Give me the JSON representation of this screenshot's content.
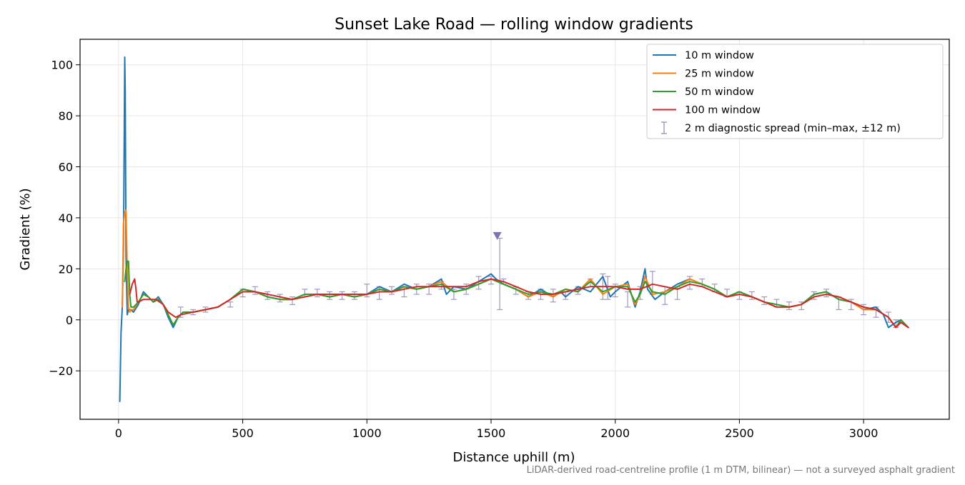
{
  "chart_data": {
    "type": "line",
    "title": "Sunset Lake Road — rolling window gradients",
    "xlabel": "Distance uphill (m)",
    "ylabel": "Gradient (%)",
    "xlim": [
      -155,
      3345
    ],
    "ylim": [
      -39,
      110
    ],
    "xticks": [
      0,
      500,
      1000,
      1500,
      2000,
      2500,
      3000
    ],
    "yticks": [
      -20,
      0,
      20,
      40,
      60,
      80,
      100
    ],
    "ytick_labels": [
      "−20",
      "0",
      "20",
      "40",
      "60",
      "80",
      "100"
    ],
    "grid": true,
    "legend_position": "top-right",
    "footnote": "LiDAR-derived road-centreline profile (1 m DTM, bilinear) — not a surveyed asphalt gradient",
    "series": [
      {
        "name": "10 m window",
        "color": "#1f77b4",
        "x": [
          5,
          10,
          15,
          20,
          25,
          27,
          30,
          35,
          40,
          50,
          60,
          80,
          100,
          120,
          140,
          160,
          180,
          200,
          220,
          240,
          260,
          300,
          350,
          400,
          450,
          500,
          550,
          600,
          650,
          700,
          750,
          800,
          850,
          900,
          950,
          1000,
          1050,
          1100,
          1150,
          1200,
          1250,
          1300,
          1320,
          1350,
          1400,
          1450,
          1500,
          1520,
          1550,
          1600,
          1650,
          1700,
          1750,
          1780,
          1800,
          1850,
          1900,
          1950,
          1980,
          2000,
          2050,
          2080,
          2100,
          2120,
          2130,
          2160,
          2200,
          2250,
          2300,
          2350,
          2400,
          2450,
          2500,
          2550,
          2600,
          2650,
          2700,
          2750,
          2800,
          2850,
          2900,
          2950,
          3000,
          3050,
          3080,
          3100,
          3130,
          3150,
          3180
        ],
        "y": [
          -32,
          -5,
          5,
          30,
          103,
          90,
          25,
          2,
          4,
          4,
          3,
          6,
          11,
          9,
          7,
          9,
          6,
          1,
          -3,
          1,
          3,
          3,
          4,
          5,
          8,
          12,
          11,
          9,
          8,
          8,
          10,
          10,
          9,
          10,
          9,
          10,
          13,
          11,
          14,
          12,
          13,
          16,
          10,
          13,
          12,
          15,
          18,
          16,
          14,
          12,
          9,
          12,
          9,
          11,
          9,
          13,
          11,
          17,
          9,
          11,
          15,
          5,
          11,
          20,
          12,
          8,
          11,
          14,
          16,
          14,
          12,
          9,
          11,
          9,
          7,
          6,
          5,
          6,
          10,
          11,
          8,
          7,
          4,
          5,
          2,
          -3,
          -1,
          0,
          -3
        ]
      },
      {
        "name": "25 m window",
        "color": "#ff7f0e",
        "x": [
          15,
          20,
          25,
          30,
          35,
          40,
          45,
          50,
          60,
          80,
          100,
          120,
          140,
          160,
          180,
          200,
          220,
          240,
          260,
          300,
          350,
          400,
          450,
          500,
          550,
          600,
          650,
          700,
          750,
          800,
          850,
          900,
          950,
          1000,
          1050,
          1100,
          1150,
          1200,
          1250,
          1300,
          1350,
          1400,
          1450,
          1500,
          1550,
          1600,
          1650,
          1700,
          1750,
          1800,
          1850,
          1900,
          1950,
          2000,
          2050,
          2080,
          2100,
          2120,
          2150,
          2200,
          2250,
          2300,
          2350,
          2400,
          2450,
          2500,
          2550,
          2600,
          2650,
          2700,
          2750,
          2800,
          2850,
          2900,
          2950,
          3000,
          3050,
          3100,
          3130,
          3150,
          3180
        ],
        "y": [
          5,
          38,
          42,
          43,
          20,
          5,
          3,
          4,
          4,
          7,
          10,
          9,
          7,
          8,
          6,
          2,
          -2,
          1,
          3,
          3,
          4,
          5,
          8,
          12,
          11,
          9,
          8,
          8,
          10,
          10,
          9,
          10,
          9,
          10,
          12,
          11,
          13,
          12,
          13,
          15,
          11,
          12,
          14,
          16,
          14,
          12,
          9,
          11,
          9,
          12,
          11,
          16,
          10,
          13,
          14,
          6,
          10,
          17,
          10,
          11,
          13,
          16,
          14,
          12,
          9,
          11,
          9,
          7,
          6,
          5,
          6,
          10,
          11,
          8,
          7,
          4,
          4,
          1,
          -3,
          0,
          -3
        ]
      },
      {
        "name": "50 m window",
        "color": "#2ca02c",
        "x": [
          25,
          30,
          35,
          40,
          45,
          50,
          60,
          80,
          100,
          120,
          140,
          160,
          180,
          200,
          220,
          240,
          260,
          300,
          350,
          400,
          450,
          500,
          550,
          600,
          650,
          700,
          750,
          800,
          850,
          900,
          950,
          1000,
          1050,
          1100,
          1150,
          1200,
          1250,
          1300,
          1350,
          1400,
          1450,
          1500,
          1550,
          1600,
          1650,
          1700,
          1750,
          1800,
          1850,
          1900,
          1950,
          2000,
          2050,
          2080,
          2100,
          2120,
          2150,
          2200,
          2250,
          2300,
          2350,
          2400,
          2450,
          2500,
          2550,
          2600,
          2650,
          2700,
          2750,
          2800,
          2850,
          2900,
          2950,
          3000,
          3050,
          3100,
          3130,
          3150,
          3180
        ],
        "y": [
          15,
          20,
          23,
          23,
          10,
          5,
          5,
          7,
          10,
          9,
          7,
          8,
          6,
          2,
          -2,
          1,
          3,
          3,
          4,
          5,
          8,
          12,
          11,
          9,
          8,
          8,
          10,
          10,
          9,
          10,
          9,
          10,
          12,
          11,
          13,
          12,
          13,
          14,
          11,
          12,
          14,
          16,
          14,
          12,
          10,
          11,
          10,
          12,
          11,
          15,
          11,
          13,
          13,
          7,
          10,
          15,
          11,
          10,
          13,
          15,
          14,
          12,
          9,
          11,
          9,
          7,
          6,
          5,
          6,
          10,
          11,
          8,
          7,
          5,
          4,
          1,
          -3,
          0,
          -3
        ]
      },
      {
        "name": "100 m window",
        "color": "#d62728",
        "x": [
          45,
          55,
          65,
          70,
          75,
          80,
          100,
          120,
          150,
          180,
          200,
          230,
          250,
          300,
          350,
          400,
          450,
          500,
          550,
          600,
          650,
          700,
          750,
          800,
          850,
          900,
          950,
          1000,
          1050,
          1100,
          1150,
          1200,
          1250,
          1300,
          1350,
          1400,
          1450,
          1500,
          1550,
          1600,
          1650,
          1700,
          1750,
          1800,
          1850,
          1900,
          1950,
          2000,
          2050,
          2100,
          2150,
          2200,
          2250,
          2300,
          2350,
          2400,
          2450,
          2500,
          2550,
          2600,
          2650,
          2700,
          2750,
          2800,
          2850,
          2900,
          2950,
          3000,
          3050,
          3100,
          3130,
          3150,
          3180
        ],
        "y": [
          10,
          14,
          16,
          12,
          7,
          7,
          8,
          8,
          8,
          6,
          3,
          1,
          2,
          3,
          4,
          5,
          8,
          11,
          11,
          10,
          9,
          8,
          9,
          10,
          10,
          10,
          10,
          10,
          11,
          11,
          12,
          13,
          13,
          13,
          13,
          13,
          15,
          16,
          15,
          13,
          11,
          10,
          10,
          11,
          12,
          13,
          13,
          13,
          12,
          12,
          14,
          13,
          12,
          14,
          13,
          11,
          9,
          10,
          9,
          7,
          5,
          5,
          6,
          9,
          10,
          9,
          7,
          5,
          4,
          1,
          -3,
          -1,
          -3
        ]
      }
    ],
    "diagnostic": {
      "name": "2 m diagnostic spread (min–max, ±12 m)",
      "color": "#9f97be",
      "x": [
        250,
        300,
        350,
        450,
        500,
        550,
        600,
        650,
        700,
        750,
        800,
        850,
        900,
        950,
        1000,
        1050,
        1100,
        1150,
        1200,
        1250,
        1300,
        1350,
        1400,
        1450,
        1500,
        1535,
        1550,
        1600,
        1650,
        1700,
        1750,
        1800,
        1850,
        1900,
        1950,
        1970,
        2000,
        2050,
        2100,
        2150,
        2200,
        2250,
        2300,
        2350,
        2400,
        2450,
        2500,
        2550,
        2600,
        2650,
        2700,
        2750,
        2800,
        2850,
        2900,
        2950,
        3000,
        3050,
        3100,
        3130
      ],
      "ylo": [
        1,
        2,
        3,
        5,
        9,
        10,
        8,
        7,
        6,
        9,
        9,
        8,
        8,
        8,
        9,
        8,
        10,
        9,
        10,
        10,
        12,
        8,
        10,
        12,
        14,
        4,
        14,
        10,
        8,
        8,
        7,
        8,
        10,
        13,
        8,
        8,
        9,
        5,
        8,
        10,
        6,
        8,
        12,
        13,
        11,
        9,
        8,
        8,
        6,
        5,
        4,
        4,
        8,
        9,
        4,
        4,
        2,
        1,
        -1,
        -3
      ],
      "yhi": [
        5,
        4,
        5,
        7,
        12,
        13,
        11,
        10,
        9,
        12,
        12,
        11,
        11,
        11,
        14,
        13,
        13,
        13,
        14,
        14,
        15,
        12,
        14,
        17,
        17,
        32,
        16,
        13,
        11,
        12,
        12,
        11,
        13,
        16,
        18,
        17,
        14,
        11,
        13,
        19,
        13,
        13,
        17,
        16,
        14,
        12,
        11,
        11,
        9,
        8,
        7,
        7,
        11,
        12,
        9,
        8,
        6,
        5,
        3,
        0
      ]
    },
    "diagnostic_peak": {
      "x": 1525,
      "y": 33
    }
  }
}
